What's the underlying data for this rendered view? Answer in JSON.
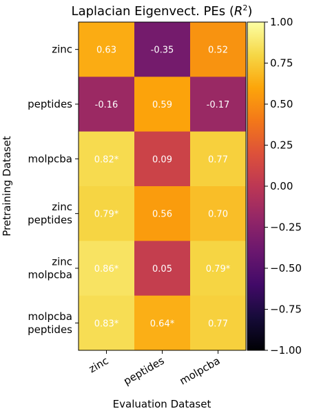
{
  "chart_data": {
    "type": "heatmap",
    "title": "Laplacian Eigenvect. PEs (R²)",
    "xlabel": "Evaluation Dataset",
    "ylabel": "Pretraining Dataset",
    "x_categories": [
      "zinc",
      "peptides",
      "molpcba"
    ],
    "y_categories": [
      [
        "zinc"
      ],
      [
        "peptides"
      ],
      [
        "molpcba"
      ],
      [
        "zinc",
        "peptides"
      ],
      [
        "zinc",
        "molpcba"
      ],
      [
        "molpcba",
        "peptides"
      ]
    ],
    "values": [
      [
        0.63,
        -0.35,
        0.52
      ],
      [
        -0.16,
        0.59,
        -0.17
      ],
      [
        0.82,
        0.09,
        0.77
      ],
      [
        0.79,
        0.56,
        0.7
      ],
      [
        0.86,
        0.05,
        0.79
      ],
      [
        0.83,
        0.64,
        0.77
      ]
    ],
    "cell_labels": [
      [
        "0.63",
        "-0.35",
        "0.52"
      ],
      [
        "-0.16",
        "0.59",
        "-0.17"
      ],
      [
        "0.82*",
        "0.09",
        "0.77"
      ],
      [
        "0.79*",
        "0.56",
        "0.70"
      ],
      [
        "0.86*",
        "0.05",
        "0.79*"
      ],
      [
        "0.83*",
        "0.64*",
        "0.77"
      ]
    ],
    "colorbar": {
      "colormap": "inferno",
      "range": [
        -1.0,
        1.0
      ],
      "ticks": [
        1.0,
        0.75,
        0.5,
        0.25,
        0.0,
        -0.25,
        -0.5,
        -0.75,
        -1.0
      ],
      "tick_labels": [
        "1.00",
        "0.75",
        "0.50",
        "0.25",
        "0.00",
        "−0.25",
        "−0.50",
        "−0.75",
        "−1.00"
      ]
    }
  }
}
